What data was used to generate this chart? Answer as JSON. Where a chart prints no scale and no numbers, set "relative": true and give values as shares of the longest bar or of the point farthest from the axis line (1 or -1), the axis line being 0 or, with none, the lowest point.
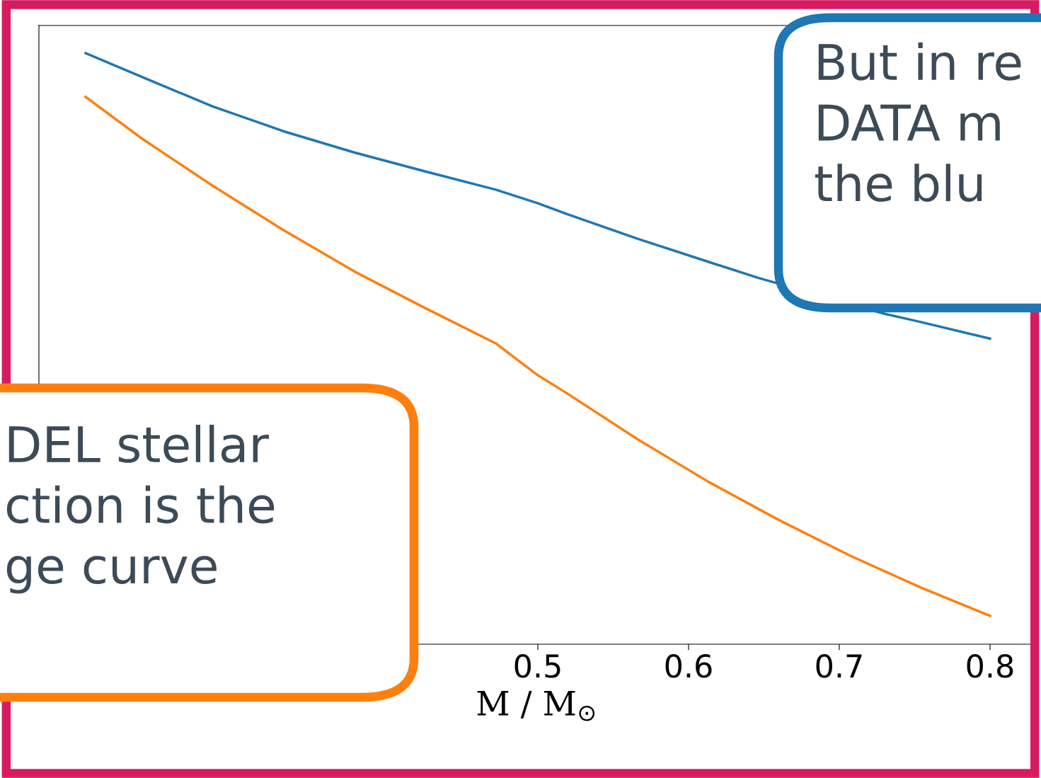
{
  "chart_data": {
    "type": "line",
    "relative": true,
    "xlabel": "M / M$_{⊙}$",
    "xlim": [
      0.169,
      0.8296
    ],
    "xticks": [
      {
        "value": 0.4,
        "label": null
      },
      0.5,
      0.6,
      0.7,
      0.8
    ],
    "tick_labels": "x",
    "grid": false,
    "legend": false,
    "series": [
      {
        "color": "#1f77b4",
        "x": [
          0.2,
          0.237,
          0.284,
          0.331,
          0.378,
          0.425,
          0.472,
          0.5,
          0.519,
          0.566,
          0.613,
          0.646,
          0.73,
          0.754,
          0.8
        ],
        "values": [
          1.0,
          0.96,
          0.91,
          0.868,
          0.832,
          0.8,
          0.769,
          0.746,
          0.728,
          0.686,
          0.647,
          0.62,
          0.559,
          0.545,
          0.517
        ]
      },
      {
        "color": "#ff7f0e",
        "x": [
          0.2,
          0.237,
          0.284,
          0.331,
          0.378,
          0.425,
          0.472,
          0.5,
          0.519,
          0.566,
          0.613,
          0.66,
          0.707,
          0.754,
          0.8
        ],
        "values": [
          0.926,
          0.856,
          0.776,
          0.701,
          0.631,
          0.569,
          0.509,
          0.455,
          0.425,
          0.347,
          0.275,
          0.21,
          0.15,
          0.096,
          0.048
        ]
      }
    ],
    "annotations": [
      "But in re\nDATA m\nthe blu",
      "DEL stellar\nction is the\nge curve"
    ]
  }
}
